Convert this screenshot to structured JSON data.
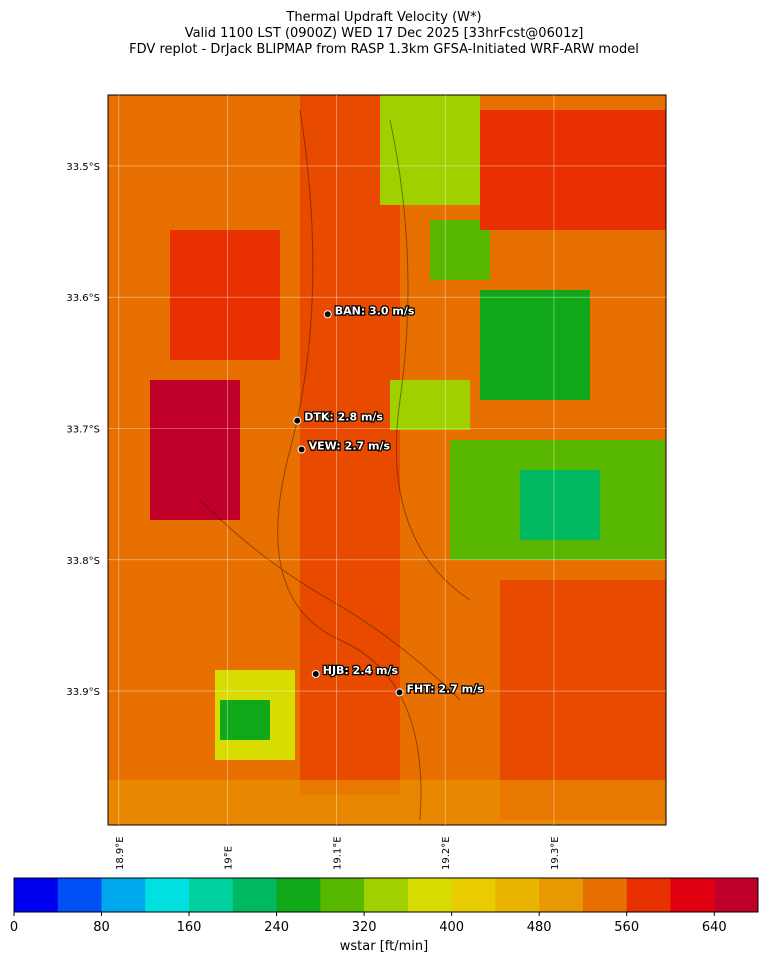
{
  "title": [
    "Thermal Updraft Velocity (W*)",
    "Valid 1100 LST (0900Z) WED 17 Dec 2025 [33hrFcst@0601z]",
    "FDV replot - DrJack BLIPMAP from RASP 1.3km GFSA-Initiated WRF-ARW model"
  ],
  "map": {
    "xlim": [
      18.89,
      19.403
    ],
    "ylim": [
      -34.002,
      -33.446
    ],
    "xticks": [
      {
        "value": 18.9,
        "label": "18.9°E"
      },
      {
        "value": 19.0,
        "label": "19°E"
      },
      {
        "value": 19.1,
        "label": "19.1°E"
      },
      {
        "value": 19.2,
        "label": "19.2°E"
      },
      {
        "value": 19.3,
        "label": "19.3°E"
      }
    ],
    "yticks": [
      {
        "value": -33.5,
        "label": "33.5°S"
      },
      {
        "value": -33.6,
        "label": "33.6°S"
      },
      {
        "value": -33.7,
        "label": "33.7°S"
      },
      {
        "value": -33.8,
        "label": "33.8°S"
      },
      {
        "value": -33.9,
        "label": "33.9°S"
      }
    ],
    "stations": [
      {
        "label": "BAN: 3.0 m/s",
        "lat": -33.613,
        "lon": 19.092
      },
      {
        "label": "DTK: 2.8 m/s",
        "lat": -33.694,
        "lon": 19.064
      },
      {
        "label": "VEW: 2.7 m/s",
        "lat": -33.716,
        "lon": 19.068
      },
      {
        "label": "HJB: 2.4 m/s",
        "lat": -33.887,
        "lon": 19.081
      },
      {
        "label": "FHT: 2.7 m/s",
        "lat": -33.901,
        "lon": 19.158
      }
    ]
  },
  "colorbar": {
    "lim": [
      0,
      680
    ],
    "colors": [
      "#0000f0",
      "#0050f5",
      "#00a8ec",
      "#00e0e0",
      "#00d0a0",
      "#00b860",
      "#10a818",
      "#58b800",
      "#a0d000",
      "#d8dc00",
      "#e8cc00",
      "#e8b400",
      "#e89800",
      "#e87000",
      "#e83000",
      "#e00010",
      "#c00028"
    ],
    "ticks": [
      0,
      80,
      160,
      240,
      320,
      400,
      480,
      560,
      640
    ],
    "label": "wstar [ft/min]"
  }
}
